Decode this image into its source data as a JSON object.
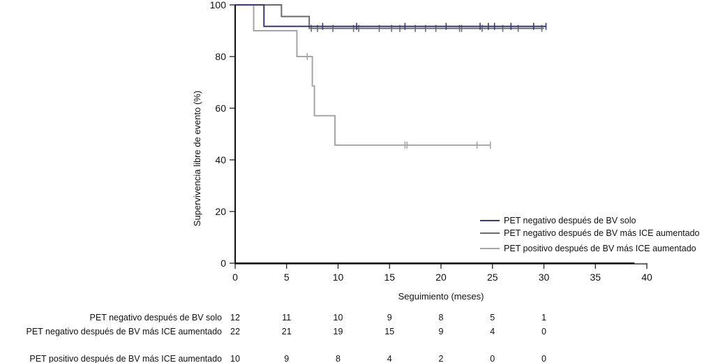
{
  "chart_data": {
    "type": "line",
    "title": "",
    "xlabel": "Seguimiento (meses)",
    "ylabel": "Supervivencia libre de evento (%)",
    "xlim": [
      0,
      40
    ],
    "ylim": [
      0,
      100
    ],
    "x_ticks": [
      0,
      5,
      10,
      15,
      20,
      25,
      30,
      35,
      40
    ],
    "y_ticks": [
      0,
      20,
      40,
      60,
      80,
      100
    ],
    "x_data_end": 38.8,
    "grid": false,
    "legend_position": "bottom-right",
    "series": [
      {
        "name": "PET negativo después de BV solo",
        "color": "#3a3a6e",
        "step_times": [
          0,
          2.8
        ],
        "step_values": [
          100,
          91.7
        ],
        "end_time": 30.2,
        "censor_times": [
          8.5,
          11.8,
          16.5,
          20.5,
          23.8,
          24.6,
          25.2,
          26.8,
          29.0,
          30.2
        ]
      },
      {
        "name": "PET negativo después de BV más ICE aumentado",
        "color": "#6b6b6b",
        "step_times": [
          0,
          4.5,
          7.2
        ],
        "step_values": [
          100,
          95.5,
          90.9
        ],
        "end_time": 30.0,
        "censor_times": [
          7.4,
          8.0,
          9.5,
          11.5,
          12.0,
          14.0,
          15.2,
          16.0,
          17.5,
          18.5,
          19.5,
          21.8,
          22.0,
          24.0,
          26.0,
          27.5,
          29.8
        ]
      },
      {
        "name": "PET positivo después de BV más ICE aumentado",
        "color": "#a6a6a6",
        "step_times": [
          0,
          1.8,
          6.0,
          7.5,
          7.7,
          9.7
        ],
        "step_values": [
          100,
          90,
          80,
          68.6,
          57.1,
          45.7
        ],
        "end_time": 24.8,
        "censor_times": [
          7.0,
          16.5,
          16.7,
          23.5,
          24.8
        ]
      }
    ]
  },
  "risk_table": {
    "times": [
      0,
      5,
      10,
      15,
      20,
      25,
      30
    ],
    "rows": [
      {
        "label": "PET negativo después de BV solo",
        "values": [
          "12",
          "11",
          "10",
          "9",
          "8",
          "5",
          "1"
        ]
      },
      {
        "label": "PET negativo después de BV más ICE aumentado",
        "values": [
          "22",
          "21",
          "19",
          "15",
          "9",
          "4",
          "0"
        ]
      },
      {
        "label": "PET positivo después de BV más ICE aumentado",
        "values": [
          "10",
          "9",
          "8",
          "4",
          "2",
          "0",
          "0"
        ]
      }
    ]
  }
}
